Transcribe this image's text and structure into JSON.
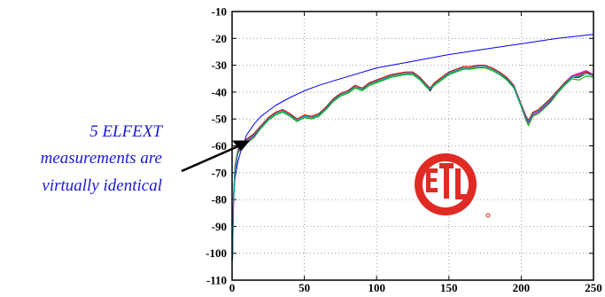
{
  "chart_data": {
    "type": "line",
    "title": "",
    "xlabel": "",
    "ylabel": "",
    "xlim": [
      0,
      250
    ],
    "ylim": [
      -110,
      -10
    ],
    "x_ticks": [
      "0",
      "50",
      "100",
      "150",
      "200",
      "250"
    ],
    "y_ticks": [
      "-10",
      "-20",
      "-30",
      "-40",
      "-50",
      "-60",
      "-70",
      "-80",
      "-90",
      "-100",
      "-110"
    ],
    "grid": "dotted",
    "series": [
      {
        "color": "#0000ff",
        "x": [
          0.3,
          0.5,
          1,
          2,
          4,
          6,
          8,
          10,
          15,
          20,
          30,
          40,
          50,
          60,
          75,
          100,
          125,
          150,
          175,
          200,
          225,
          250
        ],
        "y": [
          -94,
          -88,
          -80,
          -72,
          -66,
          -62,
          -59,
          -56,
          -52,
          -49,
          -45,
          -42,
          -39.5,
          -37.5,
          -35,
          -31,
          -28.5,
          -26,
          -24,
          -22,
          -20,
          -18.5
        ]
      },
      {
        "color": "#000000",
        "x": [
          0.3,
          1,
          2,
          4,
          6,
          8,
          10,
          15,
          20,
          25,
          30,
          35,
          40,
          45,
          50,
          55,
          60,
          65,
          70,
          75,
          80,
          85,
          90,
          95,
          100,
          105,
          110,
          115,
          120,
          125,
          130,
          135,
          137,
          140,
          145,
          150,
          155,
          160,
          165,
          170,
          175,
          180,
          185,
          190,
          195,
          200,
          203,
          205,
          208,
          212,
          216,
          220,
          225,
          230,
          235,
          240,
          245,
          250
        ],
        "y": [
          -101,
          -80,
          -68,
          -62,
          -60,
          -59,
          -58,
          -56,
          -53,
          -50,
          -48,
          -47,
          -48.5,
          -50.5,
          -49,
          -49.5,
          -48.5,
          -46,
          -43,
          -41,
          -40,
          -38,
          -39,
          -37,
          -36,
          -35,
          -34,
          -33.5,
          -33,
          -33,
          -35,
          -38,
          -39.5,
          -37,
          -35,
          -33,
          -32,
          -31,
          -31,
          -30.5,
          -30.5,
          -31.5,
          -33,
          -35,
          -38,
          -45,
          -49,
          -51,
          -48,
          -47,
          -45,
          -43,
          -40,
          -37,
          -34.5,
          -34.5,
          -33,
          -34
        ]
      },
      {
        "color": "#00b000",
        "x": [
          0.3,
          1,
          2,
          4,
          6,
          8,
          10,
          15,
          20,
          25,
          30,
          35,
          40,
          45,
          50,
          55,
          60,
          65,
          70,
          75,
          80,
          85,
          90,
          95,
          100,
          105,
          110,
          115,
          120,
          125,
          130,
          135,
          137,
          140,
          145,
          150,
          155,
          160,
          165,
          170,
          175,
          180,
          185,
          190,
          195,
          200,
          203,
          205,
          208,
          212,
          216,
          220,
          225,
          230,
          235,
          240,
          245,
          250
        ],
        "y": [
          -103,
          -82,
          -70,
          -63,
          -61,
          -60,
          -59,
          -57,
          -53.5,
          -50.5,
          -48.5,
          -47.5,
          -49,
          -51,
          -49.5,
          -50,
          -49,
          -46.5,
          -43.5,
          -41.5,
          -40.5,
          -38.5,
          -39.5,
          -37.5,
          -36.5,
          -35.5,
          -34.5,
          -34,
          -33.5,
          -33.5,
          -35.5,
          -38.5,
          -39,
          -37.5,
          -35.5,
          -33.5,
          -32.5,
          -31.5,
          -31.5,
          -31,
          -31,
          -32,
          -33.5,
          -35.5,
          -38.5,
          -45.5,
          -50,
          -52.5,
          -49,
          -48,
          -46,
          -44,
          -40.5,
          -37.5,
          -35,
          -35.5,
          -34,
          -34.5
        ]
      },
      {
        "color": "#cc0000",
        "x": [
          0.3,
          1,
          2,
          4,
          6,
          8,
          10,
          15,
          20,
          25,
          30,
          35,
          40,
          45,
          50,
          55,
          60,
          65,
          70,
          75,
          80,
          85,
          90,
          95,
          100,
          105,
          110,
          115,
          120,
          125,
          130,
          135,
          137,
          140,
          145,
          150,
          155,
          160,
          165,
          170,
          175,
          180,
          185,
          190,
          195,
          200,
          203,
          205,
          208,
          212,
          216,
          220,
          225,
          230,
          235,
          240,
          245,
          250
        ],
        "y": [
          -100,
          -79,
          -67.5,
          -61.5,
          -59.5,
          -58.5,
          -57.5,
          -55.5,
          -52.5,
          -49.5,
          -47.5,
          -46.5,
          -48,
          -50,
          -48.5,
          -49,
          -48,
          -45.5,
          -42.5,
          -40.5,
          -39.5,
          -37.5,
          -38.5,
          -36.5,
          -35.5,
          -34.5,
          -33.5,
          -33,
          -32.5,
          -32.5,
          -34.5,
          -37.5,
          -38.5,
          -36.5,
          -34.5,
          -32.5,
          -31.5,
          -30.5,
          -30.5,
          -30,
          -30,
          -31,
          -32.5,
          -34.5,
          -37.5,
          -44.5,
          -48.5,
          -50.5,
          -47.5,
          -46.5,
          -44.5,
          -42.5,
          -39.5,
          -36.5,
          -34,
          -33.5,
          -32.5,
          -33.5
        ]
      },
      {
        "color": "#cc00cc",
        "x": [
          0.3,
          1,
          2,
          4,
          6,
          8,
          10,
          15,
          20,
          25,
          30,
          35,
          40,
          45,
          50,
          55,
          60,
          65,
          70,
          75,
          80,
          85,
          90,
          95,
          100,
          105,
          110,
          115,
          120,
          125,
          130,
          135,
          137,
          140,
          145,
          150,
          155,
          160,
          165,
          170,
          175,
          180,
          185,
          190,
          195,
          200,
          203,
          205,
          208,
          212,
          216,
          220,
          225,
          230,
          235,
          240,
          245,
          250
        ],
        "y": [
          -102,
          -81,
          -69,
          -62.5,
          -60.5,
          -59.5,
          -58.5,
          -56.5,
          -53,
          -50,
          -48,
          -47,
          -48.5,
          -50.5,
          -49,
          -49.5,
          -48.5,
          -46,
          -43,
          -41,
          -40,
          -38,
          -39,
          -37,
          -36,
          -35,
          -34,
          -33.5,
          -33,
          -33,
          -35,
          -38,
          -39,
          -37,
          -35,
          -33,
          -32,
          -31,
          -31,
          -30.5,
          -30.5,
          -31.5,
          -33,
          -35,
          -38,
          -45,
          -49.5,
          -51.5,
          -48.5,
          -47.5,
          -45.5,
          -43.5,
          -40,
          -37,
          -34,
          -33,
          -32,
          -33.5
        ]
      },
      {
        "color": "#00aaaa",
        "x": [
          0.3,
          1,
          2,
          4,
          6,
          8,
          10,
          15,
          20,
          25,
          30,
          35,
          40,
          45,
          50,
          55,
          60,
          65,
          70,
          75,
          80,
          85,
          90,
          95,
          100,
          105,
          110,
          115,
          120,
          125,
          130,
          135,
          137,
          140,
          145,
          150,
          155,
          160,
          165,
          170,
          175,
          180,
          185,
          190,
          195,
          200,
          203,
          205,
          208,
          212,
          216,
          220,
          225,
          230,
          235,
          240,
          245,
          250
        ],
        "y": [
          -101.5,
          -80.5,
          -68.5,
          -62,
          -60,
          -59,
          -58,
          -56,
          -53,
          -50,
          -48,
          -47,
          -48.5,
          -50.5,
          -49,
          -49.5,
          -48.5,
          -46,
          -43,
          -41,
          -40,
          -38,
          -39,
          -37,
          -36,
          -35,
          -34,
          -33.5,
          -33,
          -33,
          -35,
          -38,
          -39,
          -37,
          -35,
          -33,
          -32,
          -31,
          -31,
          -30.5,
          -30.5,
          -31.5,
          -33,
          -35,
          -38,
          -45,
          -49,
          -51,
          -48,
          -47,
          -45,
          -43,
          -40,
          -37,
          -34.5,
          -34,
          -33,
          -34
        ]
      }
    ],
    "annotation": {
      "lines": [
        "5 ELFEXT",
        "measurements are",
        "virtually identical"
      ],
      "color": "#1a1ad6",
      "points_to": {
        "x": 5,
        "y": -59
      }
    },
    "logo": {
      "name": "etl-logo",
      "color": "#e02a24",
      "text": "ETL"
    }
  }
}
